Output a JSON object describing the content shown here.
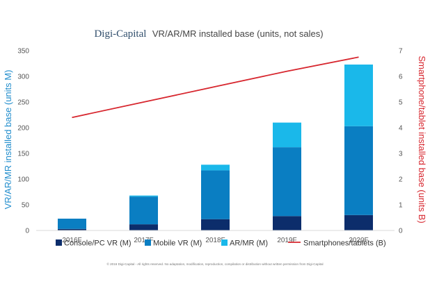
{
  "chart_data": {
    "type": "bar",
    "subtype": "stacked-bar-with-line",
    "title_brand": "Digi-Capital",
    "title_rest": "VR/AR/MR installed base (units, not sales)",
    "categories": [
      "2016F",
      "2017F",
      "2018F",
      "2019F",
      "2020F"
    ],
    "series": [
      {
        "name": "Console/PC VR (M)",
        "type": "bar",
        "axis": "left",
        "color": "#0c2d6b",
        "values": [
          3,
          12,
          22,
          28,
          30
        ]
      },
      {
        "name": "Mobile VR (M)",
        "type": "bar",
        "axis": "left",
        "color": "#0a7ec2",
        "values": [
          20,
          54,
          95,
          134,
          173
        ]
      },
      {
        "name": "AR/MR (M)",
        "type": "bar",
        "axis": "left",
        "color": "#1ab8ea",
        "values": [
          0,
          2,
          11,
          48,
          120
        ]
      },
      {
        "name": "Smartphones/tablets (B)",
        "type": "line",
        "axis": "right",
        "color": "#d7262e",
        "values": [
          4.4,
          5.0,
          5.6,
          6.2,
          6.75
        ]
      }
    ],
    "ylabel": "VR/AR/MR installed base (units M)",
    "ylabel_right": "Smartphone/tablet installed base (units B)",
    "ylim": [
      0,
      350
    ],
    "yticks": [
      0,
      50,
      100,
      150,
      200,
      250,
      300,
      350
    ],
    "ylim_right": [
      0,
      7
    ],
    "yticks_right": [
      0,
      1,
      2,
      3,
      4,
      5,
      6,
      7
    ],
    "legend_position": "bottom",
    "grid": false,
    "copyright": "© 2016 Digi-Capital - All rights reserved. No adaptation, modification, reproduction, compilation or distribution without written permission from Digi-Capital"
  }
}
